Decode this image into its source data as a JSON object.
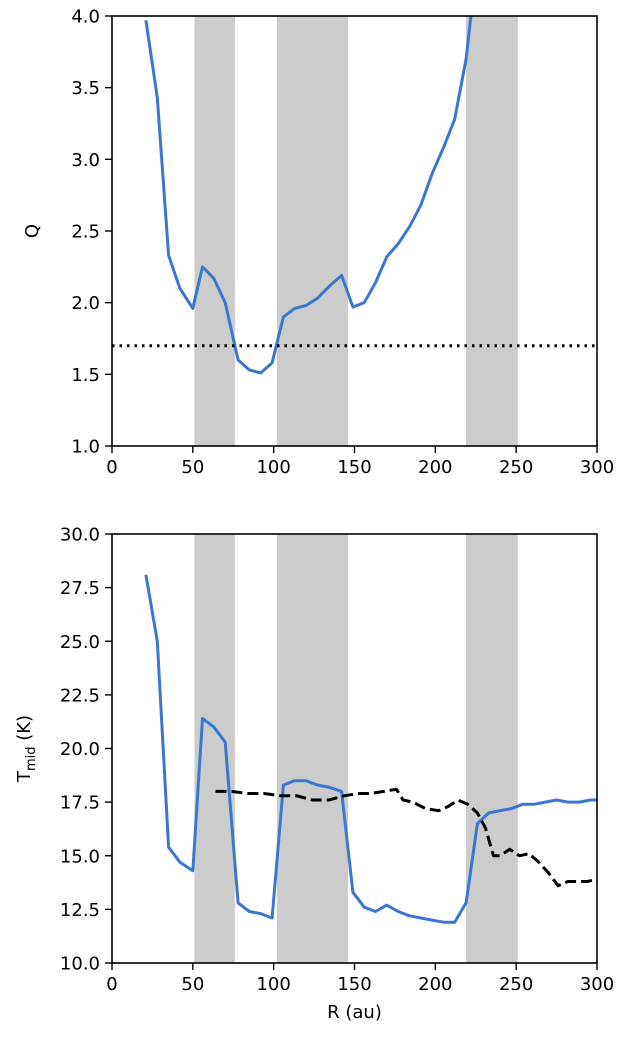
{
  "chart_data": [
    {
      "type": "line",
      "xlabel": "",
      "ylabel": "Q",
      "xlim": [
        0,
        300
      ],
      "ylim": [
        1.0,
        4.0
      ],
      "xticks": [
        "0",
        "50",
        "100",
        "150",
        "200",
        "250",
        "300"
      ],
      "yticks": [
        "1.0",
        "1.5",
        "2.0",
        "2.5",
        "3.0",
        "3.5",
        "4.0"
      ],
      "grid": false,
      "shaded_bands": [
        [
          51,
          76
        ],
        [
          102,
          146
        ],
        [
          219,
          251
        ]
      ],
      "band_color": "#cccccc",
      "series": [
        {
          "style": "solid",
          "color": "#3a78d0",
          "x": [
            21,
            28,
            35,
            42,
            50,
            56,
            63,
            70,
            78,
            85,
            92,
            99,
            106,
            113,
            120,
            127,
            134,
            142,
            149,
            156,
            163,
            170,
            177,
            184,
            191,
            198,
            205,
            212,
            219,
            222
          ],
          "y": [
            3.97,
            3.43,
            2.33,
            2.1,
            1.96,
            2.25,
            2.17,
            2.0,
            1.6,
            1.53,
            1.51,
            1.58,
            1.9,
            1.96,
            1.98,
            2.03,
            2.11,
            2.19,
            1.97,
            2.0,
            2.14,
            2.32,
            2.41,
            2.53,
            2.68,
            2.9,
            3.08,
            3.28,
            3.7,
            4.0
          ]
        },
        {
          "style": "dotted",
          "color": "#000000",
          "x": [
            0,
            300
          ],
          "y": [
            1.7,
            1.7
          ]
        }
      ]
    },
    {
      "type": "line",
      "xlabel": "R (au)",
      "ylabel_main": "T",
      "ylabel_sub": "mid",
      "ylabel_unit": " (K)",
      "xlim": [
        0,
        300
      ],
      "ylim": [
        10.0,
        30.0
      ],
      "xticks": [
        "0",
        "50",
        "100",
        "150",
        "200",
        "250",
        "300"
      ],
      "yticks": [
        "10.0",
        "12.5",
        "15.0",
        "17.5",
        "20.0",
        "22.5",
        "25.0",
        "27.5",
        "30.0"
      ],
      "grid": false,
      "shaded_bands": [
        [
          51,
          76
        ],
        [
          102,
          146
        ],
        [
          219,
          251
        ]
      ],
      "band_color": "#cccccc",
      "series": [
        {
          "style": "solid",
          "color": "#3a78d0",
          "x": [
            21,
            28,
            35,
            42,
            50,
            56,
            63,
            70,
            78,
            85,
            92,
            99,
            106,
            113,
            120,
            127,
            134,
            142,
            149,
            156,
            163,
            170,
            177,
            184,
            191,
            198,
            205,
            212,
            219,
            226,
            233,
            240,
            247,
            254,
            261,
            268,
            275,
            282,
            289,
            296,
            300
          ],
          "y": [
            28.1,
            25.0,
            15.4,
            14.7,
            14.3,
            21.4,
            21.0,
            20.3,
            12.8,
            12.4,
            12.3,
            12.1,
            18.3,
            18.5,
            18.5,
            18.3,
            18.2,
            18.0,
            13.3,
            12.6,
            12.4,
            12.7,
            12.4,
            12.2,
            12.1,
            12.0,
            11.9,
            11.9,
            12.8,
            16.5,
            17.0,
            17.1,
            17.2,
            17.4,
            17.4,
            17.5,
            17.6,
            17.5,
            17.5,
            17.6,
            17.6
          ]
        },
        {
          "style": "dashed",
          "color": "#000000",
          "x": [
            64,
            74,
            84,
            94,
            104,
            114,
            124,
            134,
            144,
            152,
            160,
            168,
            176,
            180,
            186,
            194,
            202,
            208,
            214,
            220,
            226,
            231,
            236,
            240,
            246,
            252,
            258,
            264,
            270,
            276,
            282,
            288,
            294,
            300
          ],
          "y": [
            18.0,
            18.0,
            17.9,
            17.9,
            17.8,
            17.8,
            17.6,
            17.6,
            17.8,
            17.9,
            17.9,
            18.0,
            18.1,
            17.6,
            17.5,
            17.2,
            17.1,
            17.3,
            17.6,
            17.4,
            17.0,
            16.3,
            15.0,
            15.0,
            15.3,
            15.0,
            15.1,
            14.7,
            14.2,
            13.6,
            13.8,
            13.8,
            13.8,
            13.9
          ]
        }
      ]
    }
  ]
}
